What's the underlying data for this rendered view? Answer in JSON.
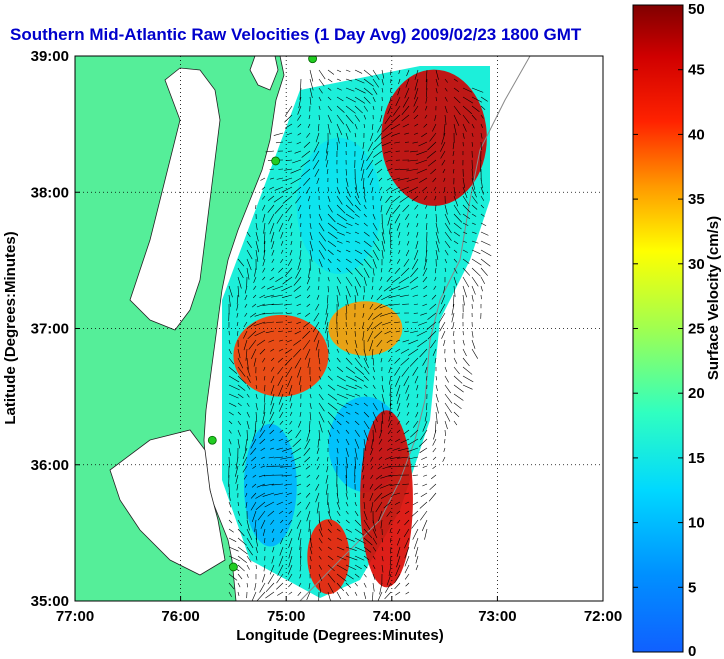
{
  "title": "Southern Mid-Atlantic Raw Velocities (1 Day Avg) 2009/02/23 1800 GMT",
  "chart_data": {
    "type": "heatmap",
    "xlabel": "Longitude (Degrees:Minutes)",
    "ylabel": "Latitude (Degrees:Minutes)",
    "xlim": [
      -77,
      -72
    ],
    "ylim": [
      35,
      39
    ],
    "x_ticks": [
      {
        "value": -77,
        "label": "77:00"
      },
      {
        "value": -76,
        "label": "76:00"
      },
      {
        "value": -75,
        "label": "75:00"
      },
      {
        "value": -74,
        "label": "74:00"
      },
      {
        "value": -73,
        "label": "73:00"
      },
      {
        "value": -72,
        "label": "72:00"
      }
    ],
    "y_ticks": [
      {
        "value": 35,
        "label": "35:00"
      },
      {
        "value": 36,
        "label": "36:00"
      },
      {
        "value": 37,
        "label": "37:00"
      },
      {
        "value": 38,
        "label": "38:00"
      },
      {
        "value": 39,
        "label": "39:00"
      }
    ],
    "grid": "dotted",
    "colorbar": {
      "label": "Surface Velocity (cm/s)",
      "min": 0,
      "max": 50,
      "ticks": [
        0,
        5,
        10,
        15,
        20,
        25,
        30,
        35,
        40,
        45,
        50
      ],
      "colormap": "jet",
      "placement": "right"
    },
    "field_regions": [
      {
        "lon": [
          -74.1,
          -73.1
        ],
        "lat": [
          37.9,
          38.9
        ],
        "speed": 46
      },
      {
        "lon": [
          -74.9,
          -74.1
        ],
        "lat": [
          37.4,
          38.4
        ],
        "speed": 14
      },
      {
        "lon": [
          -75.5,
          -74.6
        ],
        "lat": [
          36.5,
          37.1
        ],
        "speed": 40
      },
      {
        "lon": [
          -74.6,
          -73.9
        ],
        "lat": [
          36.8,
          37.2
        ],
        "speed": 36
      },
      {
        "lon": [
          -74.6,
          -73.9
        ],
        "lat": [
          35.8,
          36.5
        ],
        "speed": 10
      },
      {
        "lon": [
          -75.4,
          -74.9
        ],
        "lat": [
          35.4,
          36.3
        ],
        "speed": 9
      },
      {
        "lon": [
          -74.3,
          -73.8
        ],
        "lat": [
          35.1,
          36.4
        ],
        "speed": 45
      },
      {
        "lon": [
          -74.8,
          -74.4
        ],
        "lat": [
          35.05,
          35.6
        ],
        "speed": 42
      }
    ],
    "stations": [
      {
        "lon": -74.75,
        "lat": 38.98
      },
      {
        "lon": -75.1,
        "lat": 38.23
      },
      {
        "lon": -75.7,
        "lat": 36.18
      },
      {
        "lon": -75.5,
        "lat": 35.25
      }
    ]
  },
  "colors": {
    "land": "#55ee99",
    "ocean": "#ffffff",
    "title": "#0000cc",
    "vector": "#000000",
    "station": "#22cc22"
  }
}
